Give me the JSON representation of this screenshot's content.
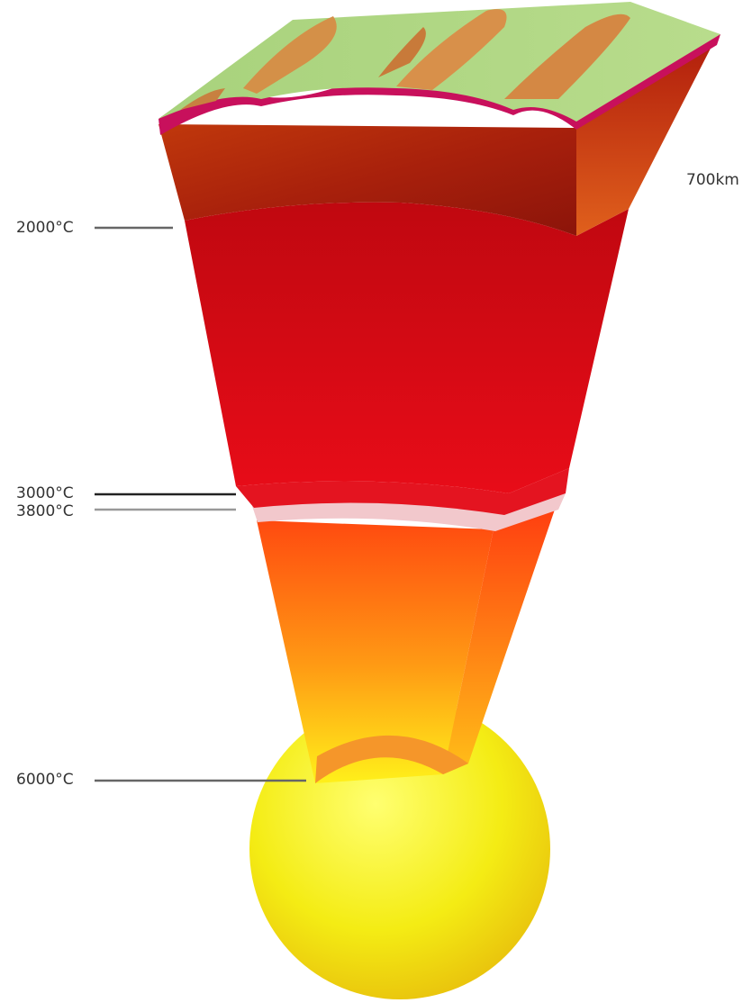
{
  "labels": {
    "depth_label": "700km",
    "temp_mantle": "2000°C",
    "temp_core_boundary_upper": "3000°C",
    "temp_core_boundary_lower": "3800°C",
    "temp_inner_core": "6000°C"
  },
  "colors": {
    "crust_magenta": "#c8105c",
    "upper_mantle": "#b8260c",
    "lower_mantle": "#c80810",
    "boundary_layer": "#e01020",
    "pale_layer": "#f2c8cc",
    "outer_core": "#ff5a10",
    "inner_core": "#f0ea10",
    "surface_green": "#a8d080",
    "surface_terrain": "#d89040",
    "leader_dark": "#222222",
    "leader_light": "#888888"
  }
}
